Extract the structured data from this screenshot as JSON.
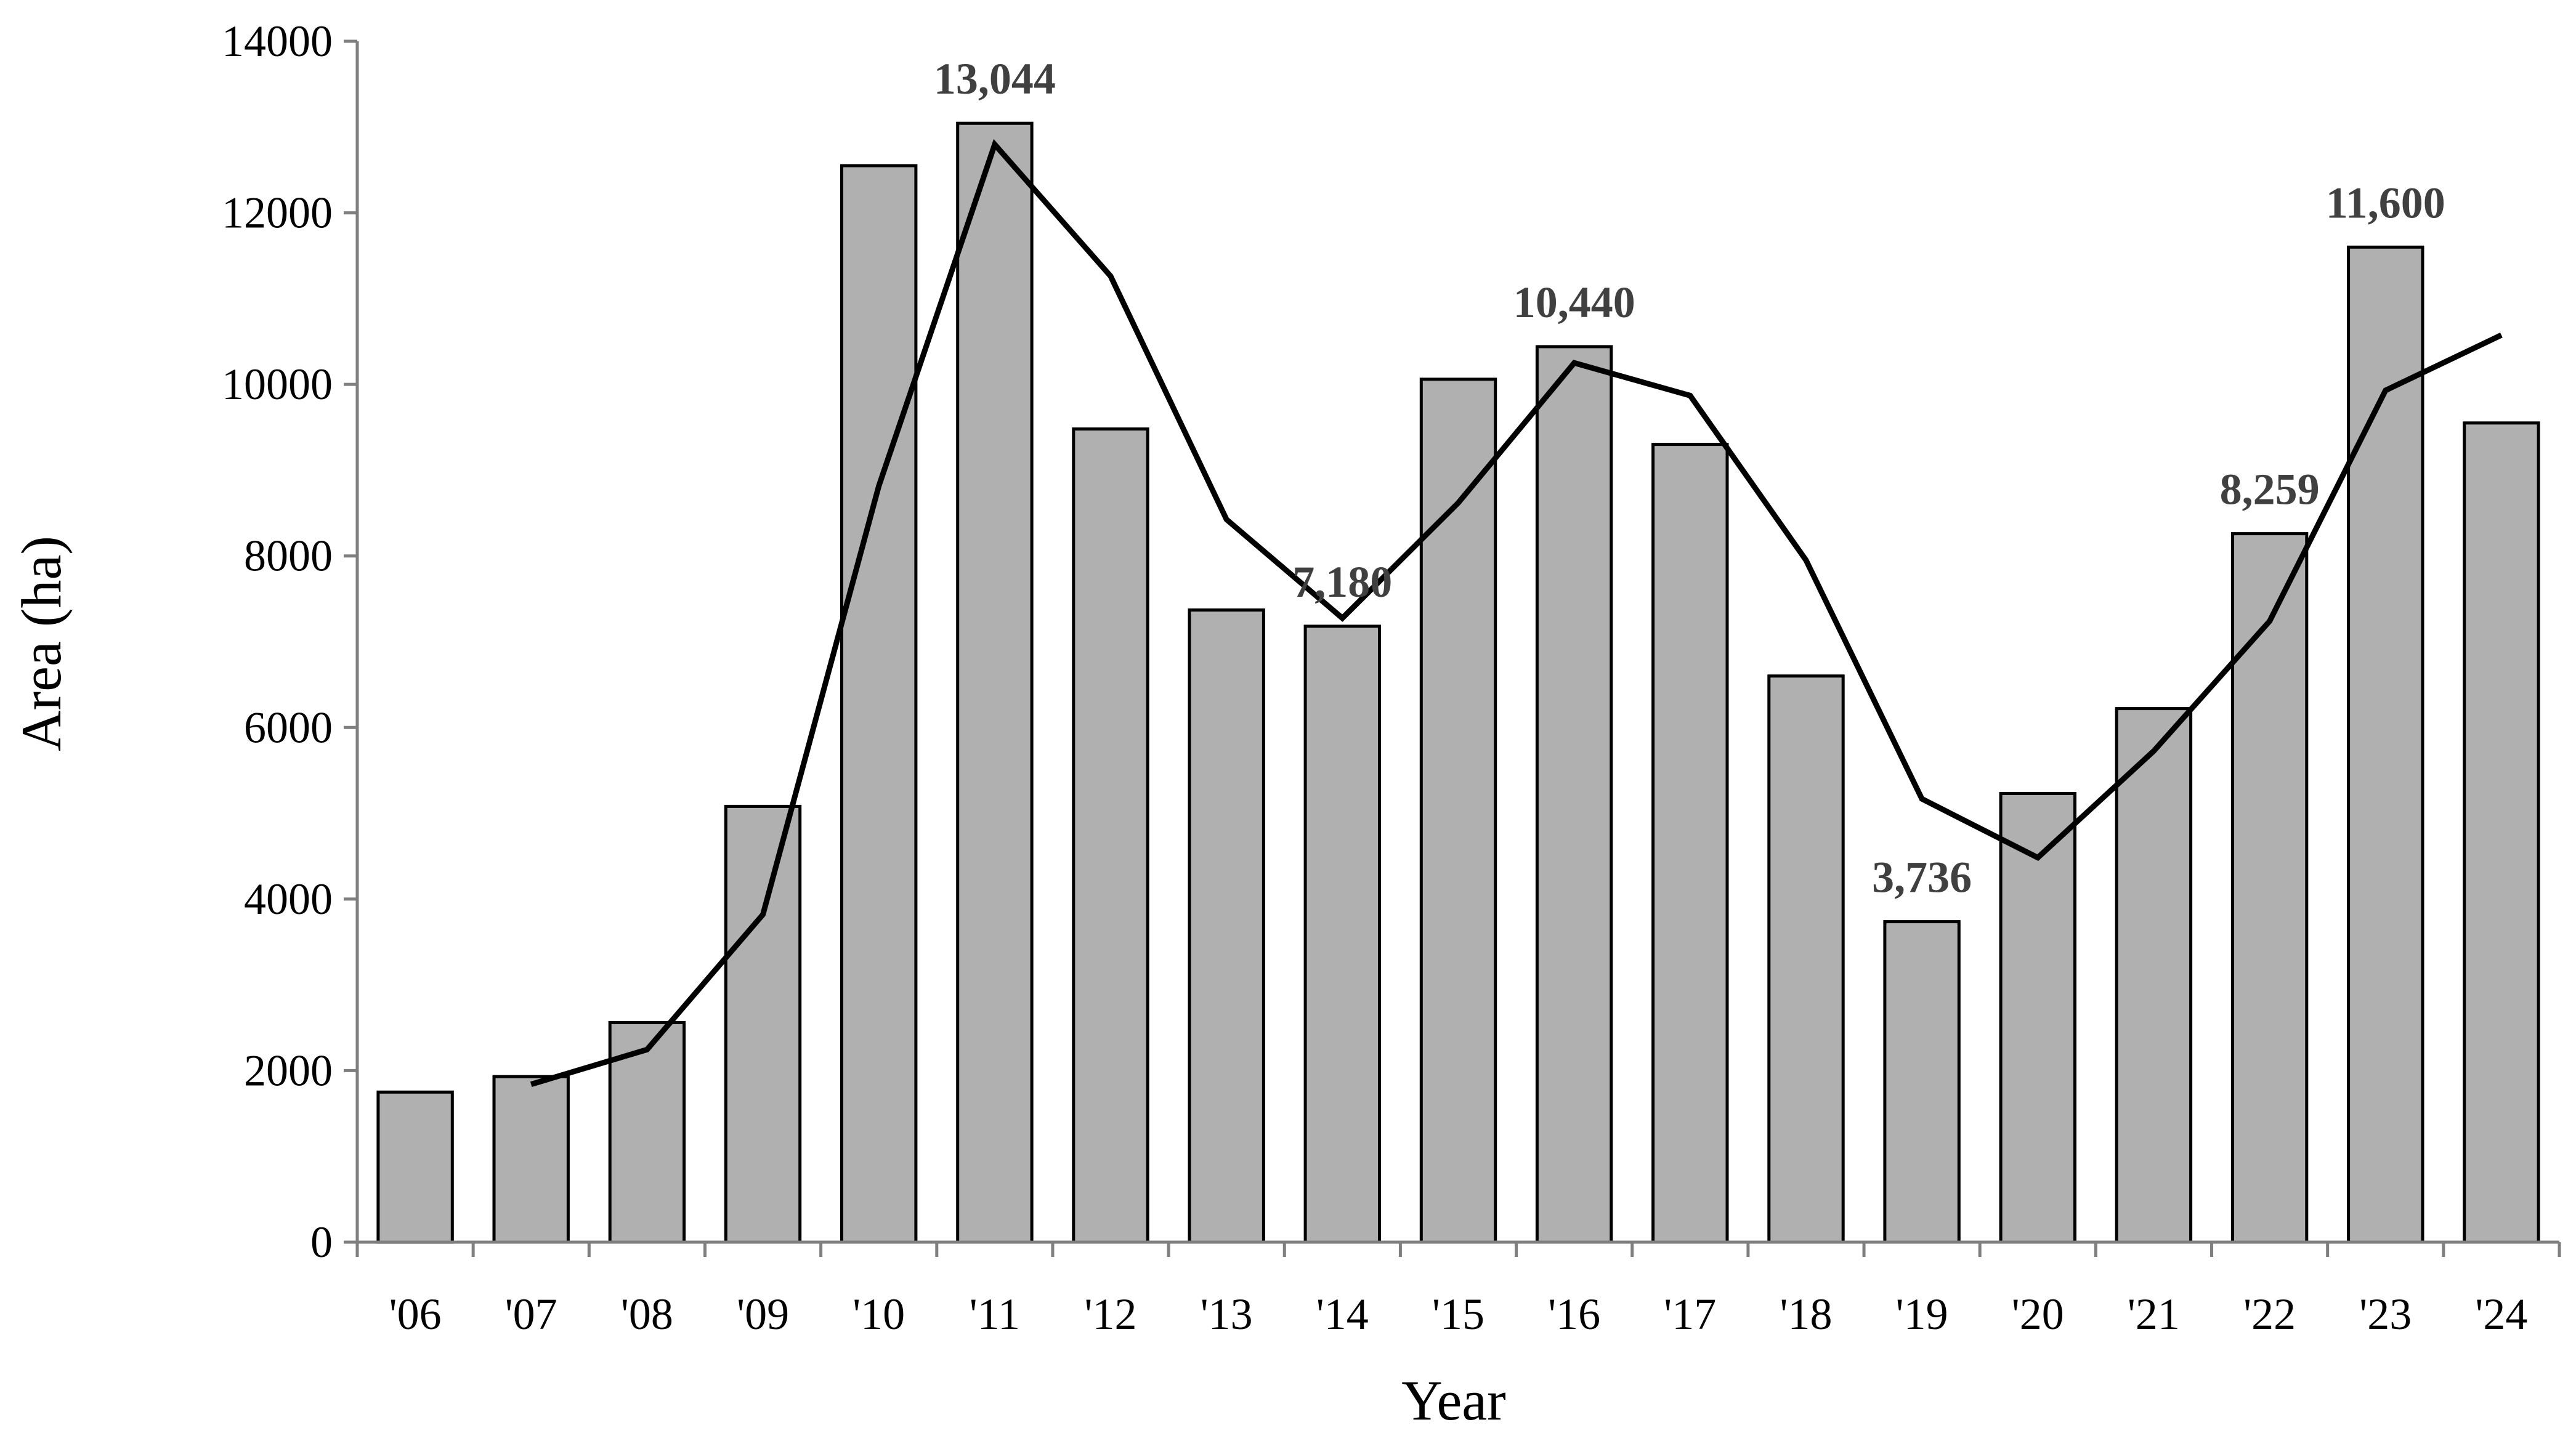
{
  "chart_data": {
    "type": "bar",
    "title": "",
    "xlabel": "Year",
    "ylabel": "Area (ha)",
    "ylim": [
      0,
      14000
    ],
    "yticks": [
      0,
      2000,
      4000,
      6000,
      8000,
      10000,
      12000,
      14000
    ],
    "categories": [
      "'06",
      "'07",
      "'08",
      "'09",
      "'10",
      "'11",
      "'12",
      "'13",
      "'14",
      "'15",
      "'16",
      "'17",
      "'18",
      "'19",
      "'20",
      "'21",
      "'22",
      "'23",
      "'24"
    ],
    "series": [
      {
        "type": "bar",
        "color": "#b0b0b0",
        "values": [
          1750,
          1930,
          2560,
          5080,
          12550,
          13044,
          9480,
          7370,
          7180,
          10060,
          10440,
          9300,
          6600,
          3736,
          5230,
          6220,
          8259,
          11600,
          9550
        ]
      },
      {
        "type": "line",
        "color": "#000000",
        "values": [
          null,
          1840,
          2245,
          3820,
          8815,
          12797,
          11262,
          8425,
          7275,
          8620,
          10250,
          9870,
          7950,
          5168,
          4483,
          5725,
          7240,
          9930,
          10575
        ]
      }
    ],
    "data_labels": [
      {
        "category": "'11",
        "text": "13,044"
      },
      {
        "category": "'14",
        "text": "7,180"
      },
      {
        "category": "'16",
        "text": "10,440"
      },
      {
        "category": "'19",
        "text": "3,736"
      },
      {
        "category": "'22",
        "text": "8,259"
      },
      {
        "category": "'23",
        "text": "11,600"
      }
    ],
    "grid": false,
    "legend": "none"
  }
}
